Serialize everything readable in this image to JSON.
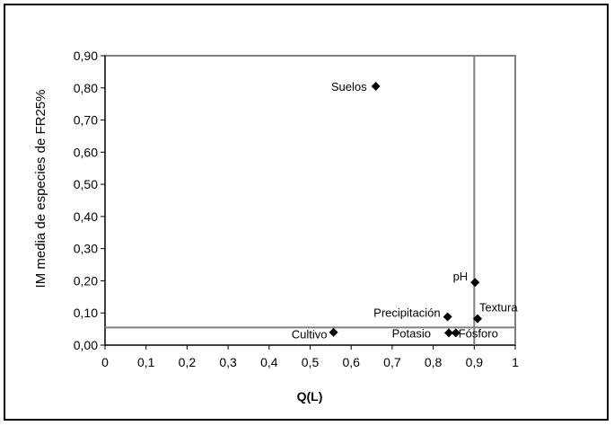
{
  "chart_data": {
    "type": "scatter",
    "title": "",
    "xlabel": "Q(L)",
    "ylabel": "IM media de especies de FR25%",
    "xlim": [
      0,
      1
    ],
    "ylim": [
      0,
      0.9
    ],
    "x_ticks": [
      "0",
      "0,1",
      "0,2",
      "0,3",
      "0,4",
      "0,5",
      "0,6",
      "0,7",
      "0,8",
      "0,9",
      "1"
    ],
    "y_ticks": [
      "0,00",
      "0,10",
      "0,20",
      "0,30",
      "0,40",
      "0,50",
      "0,60",
      "0,70",
      "0,80",
      "0,90"
    ],
    "grid": false,
    "marker_color": "#000000",
    "reference_lines": {
      "x": 0.9,
      "y": 0.055,
      "color": "#808080"
    },
    "points": [
      {
        "label": "Suelos",
        "x": 0.66,
        "y": 0.805
      },
      {
        "label": "pH",
        "x": 0.902,
        "y": 0.195
      },
      {
        "label": "Textura",
        "x": 0.908,
        "y": 0.082
      },
      {
        "label": "Precipitación",
        "x": 0.835,
        "y": 0.088
      },
      {
        "label": "Cultivo",
        "x": 0.557,
        "y": 0.04
      },
      {
        "label": "Potasio",
        "x": 0.838,
        "y": 0.038
      },
      {
        "label": "Fósforo",
        "x": 0.855,
        "y": 0.038
      }
    ]
  }
}
